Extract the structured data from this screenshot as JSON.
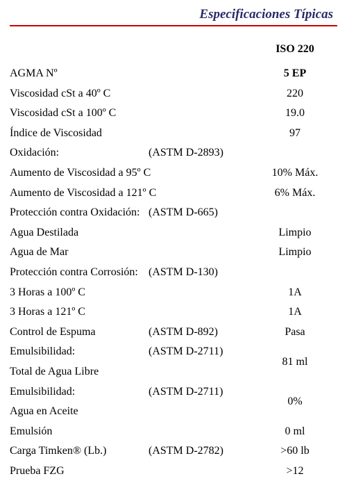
{
  "title": "Especificaciones Típicas",
  "header": {
    "value_col": "ISO 220"
  },
  "rows": [
    {
      "label": "AGMA  Nº",
      "method": "",
      "value": "5 EP",
      "bold_value": true
    },
    {
      "label": "Viscosidad cSt a 40º C",
      "method": "",
      "value": "220"
    },
    {
      "label": "Viscosidad cSt a 100º C",
      "method": "",
      "value": "19.0"
    },
    {
      "label": "Índice de Viscosidad",
      "method": "",
      "value": "97"
    },
    {
      "label": "Oxidación:",
      "method": "(ASTM D-2893)",
      "value": ""
    },
    {
      "label": "Aumento de Viscosidad a  95º C",
      "method": "",
      "value": "10% Máx.",
      "indent": true
    },
    {
      "label": "Aumento de Viscosidad a 121º C",
      "method": "",
      "value": "6% Máx.",
      "indent": true
    },
    {
      "label": "Protección contra Oxidación:",
      "method": "(ASTM D-665)",
      "value": ""
    },
    {
      "label": "Agua Destilada",
      "method": "",
      "value": "Limpio",
      "indent": true
    },
    {
      "label": "Agua de Mar",
      "method": "",
      "value": "Limpio",
      "indent": true
    },
    {
      "label": "Protección contra Corrosión:",
      "method": "(ASTM D-130)",
      "value": ""
    },
    {
      "label": "3 Horas a 100º C",
      "method": "",
      "value": "1A",
      "indent": true
    },
    {
      "label": "3 Horas a 121º C",
      "method": "",
      "value": "1A",
      "indent": true
    },
    {
      "label": "Control de Espuma",
      "method": "(ASTM D-892)",
      "value": "Pasa"
    },
    {
      "label": "Emulsibilidad:",
      "method": "(ASTM D-2711)",
      "value": "",
      "value_rowspan": "81 ml"
    },
    {
      "label": "Total de Agua Libre",
      "method": "",
      "value": "",
      "indent": true,
      "skip_value": true
    },
    {
      "label": "Emulsibilidad:",
      "method": "(ASTM D-2711)",
      "value": "",
      "value_rowspan": "0%"
    },
    {
      "label": "Agua en Aceite",
      "method": "",
      "value": "",
      "indent": true,
      "skip_value": true
    },
    {
      "label": "Emulsión",
      "method": "",
      "value": "0 ml"
    },
    {
      "label": "Carga Timken®  (Lb.)",
      "method": "(ASTM D-2782)",
      "value": ">60 lb"
    },
    {
      "label": "Prueba FZG",
      "method": "",
      "value": ">12"
    }
  ]
}
